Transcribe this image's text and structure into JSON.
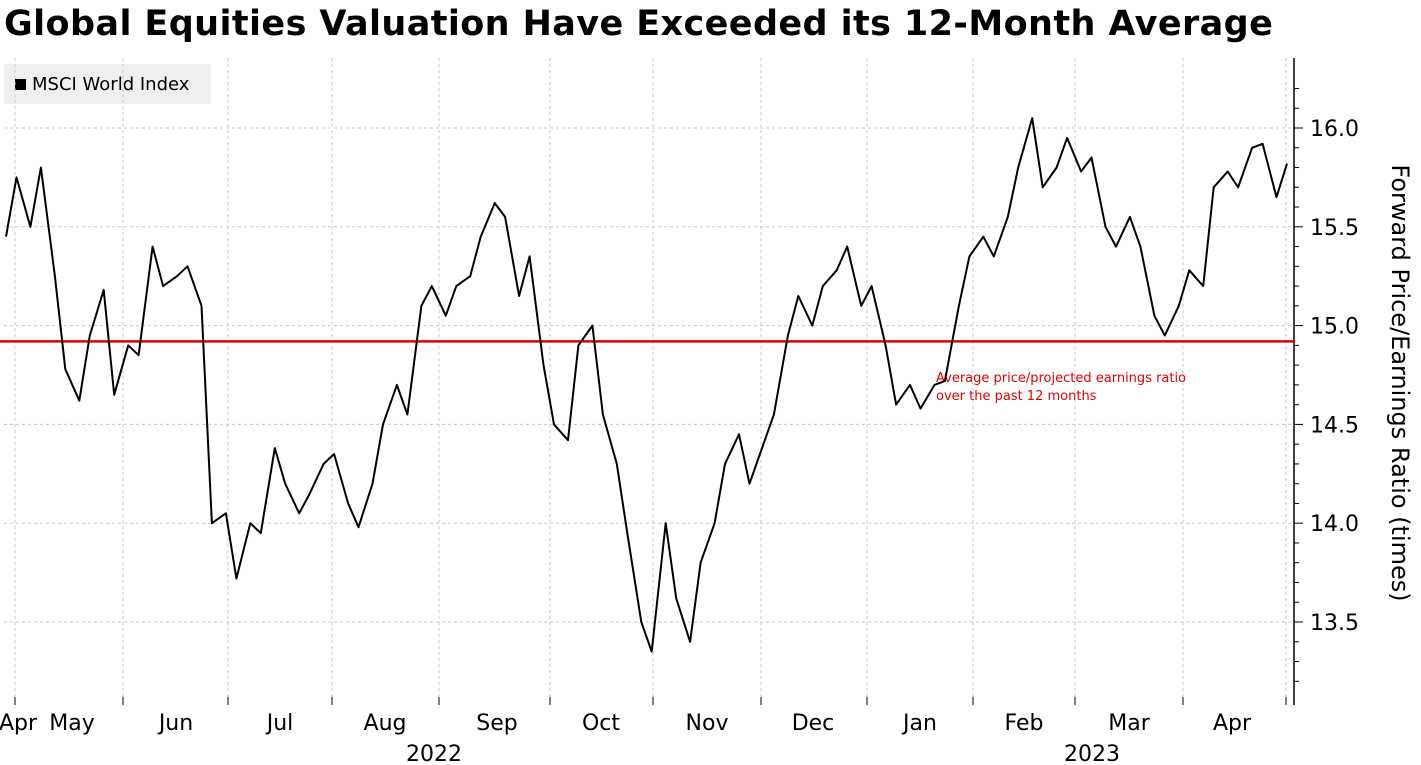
{
  "chart_data": {
    "type": "line",
    "title": "Global Equities Valuation Have Exceeded its 12-Month Average",
    "ylabel": "Forward Price/Earnings Ratio (times)",
    "ylim": [
      13.0,
      16.3
    ],
    "y_ticks": [
      "13.5",
      "14.0",
      "14.5",
      "15.0",
      "15.5",
      "16.0"
    ],
    "x_ticks": [
      "Apr",
      "May",
      "Jun",
      "Jul",
      "Aug",
      "Sep",
      "Oct",
      "Nov",
      "Dec",
      "Jan",
      "Feb",
      "Mar",
      "Apr"
    ],
    "year_labels": [
      "2022",
      "2023"
    ],
    "grid": true,
    "legend_placement": "top-left",
    "series": [
      {
        "name": "MSCI World Index",
        "color": "#000000",
        "x": [
          "2022-04-25",
          "2022-04-28",
          "2022-05-02",
          "2022-05-05",
          "2022-05-09",
          "2022-05-12",
          "2022-05-16",
          "2022-05-19",
          "2022-05-23",
          "2022-05-26",
          "2022-05-30",
          "2022-06-02",
          "2022-06-06",
          "2022-06-09",
          "2022-06-13",
          "2022-06-16",
          "2022-06-20",
          "2022-06-23",
          "2022-06-27",
          "2022-06-30",
          "2022-07-04",
          "2022-07-07",
          "2022-07-11",
          "2022-07-14",
          "2022-07-18",
          "2022-07-21",
          "2022-07-25",
          "2022-07-28",
          "2022-08-01",
          "2022-08-04",
          "2022-08-08",
          "2022-08-11",
          "2022-08-15",
          "2022-08-18",
          "2022-08-22",
          "2022-08-25",
          "2022-08-29",
          "2022-09-01",
          "2022-09-05",
          "2022-09-08",
          "2022-09-12",
          "2022-09-15",
          "2022-09-19",
          "2022-09-22",
          "2022-09-26",
          "2022-09-29",
          "2022-10-03",
          "2022-10-06",
          "2022-10-10",
          "2022-10-13",
          "2022-10-17",
          "2022-10-20",
          "2022-10-24",
          "2022-10-27",
          "2022-10-31",
          "2022-11-03",
          "2022-11-07",
          "2022-11-10",
          "2022-11-14",
          "2022-11-17",
          "2022-11-21",
          "2022-11-24",
          "2022-11-28",
          "2022-12-01",
          "2022-12-05",
          "2022-12-08",
          "2022-12-12",
          "2022-12-15",
          "2022-12-19",
          "2022-12-22",
          "2022-12-26",
          "2022-12-29",
          "2023-01-02",
          "2023-01-05",
          "2023-01-09",
          "2023-01-12",
          "2023-01-16",
          "2023-01-19",
          "2023-01-23",
          "2023-01-26",
          "2023-01-30",
          "2023-02-02",
          "2023-02-06",
          "2023-02-09",
          "2023-02-13",
          "2023-02-16",
          "2023-02-20",
          "2023-02-23",
          "2023-02-27",
          "2023-03-02",
          "2023-03-06",
          "2023-03-09",
          "2023-03-13",
          "2023-03-16",
          "2023-03-20",
          "2023-03-23",
          "2023-03-27",
          "2023-03-30",
          "2023-04-03",
          "2023-04-06",
          "2023-04-10",
          "2023-04-13",
          "2023-04-17",
          "2023-04-20",
          "2023-04-24",
          "2023-04-27"
        ],
        "values": [
          15.45,
          15.75,
          15.5,
          15.8,
          15.25,
          14.78,
          14.62,
          14.95,
          15.18,
          14.65,
          14.9,
          14.85,
          15.4,
          15.2,
          15.25,
          15.3,
          15.1,
          14.0,
          14.05,
          13.72,
          14.0,
          13.95,
          14.38,
          14.2,
          14.05,
          14.15,
          14.3,
          14.35,
          14.1,
          13.98,
          14.2,
          14.5,
          14.7,
          14.55,
          15.1,
          15.2,
          15.05,
          15.2,
          15.25,
          15.45,
          15.62,
          15.55,
          15.15,
          15.35,
          14.8,
          14.5,
          14.42,
          14.9,
          15.0,
          14.55,
          14.3,
          13.95,
          13.5,
          13.35,
          14.0,
          13.62,
          13.4,
          13.8,
          14.0,
          14.3,
          14.45,
          14.2,
          14.4,
          14.55,
          14.95,
          15.15,
          15.0,
          15.2,
          15.28,
          15.4,
          15.1,
          15.2,
          14.9,
          14.6,
          14.7,
          14.58,
          14.7,
          14.72,
          15.1,
          15.35,
          15.45,
          15.35,
          15.55,
          15.8,
          16.05,
          15.7,
          15.8,
          15.95,
          15.78,
          15.85,
          15.5,
          15.4,
          15.55,
          15.4,
          15.05,
          14.95,
          15.1,
          15.28,
          15.2,
          15.7,
          15.78,
          15.7,
          15.9,
          15.92,
          15.65,
          15.82
        ],
        "visible_dates_note": ""
      }
    ],
    "reference_line": {
      "value": 14.92,
      "color": "#e00000",
      "label_line1": "Average price/projected earnings ratio",
      "label_line2": "over the past 12 months"
    }
  }
}
